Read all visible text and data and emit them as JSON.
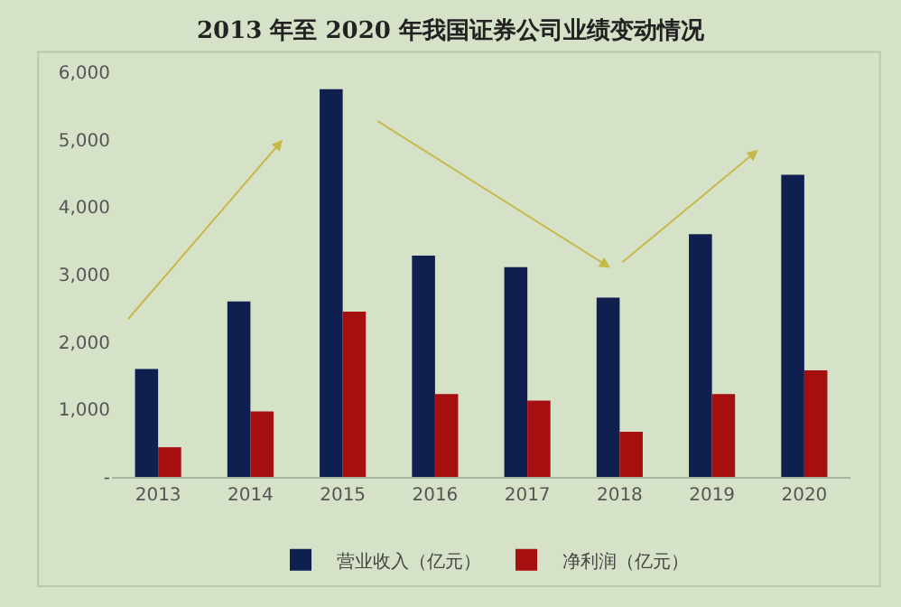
{
  "chart_data": {
    "type": "bar",
    "title": "2013 年至 2020 年我国证券公司业绩变动情况",
    "categories": [
      "2013",
      "2014",
      "2015",
      "2016",
      "2017",
      "2018",
      "2019",
      "2020"
    ],
    "series": [
      {
        "name": "营业收入（亿元）",
        "color": "#0f1f4f",
        "values": [
          1600,
          2600,
          5750,
          3280,
          3110,
          2660,
          3600,
          4480
        ]
      },
      {
        "name": "净利润（亿元）",
        "color": "#a50f0f",
        "values": [
          440,
          970,
          2450,
          1230,
          1130,
          670,
          1230,
          1580
        ]
      }
    ],
    "ylim": [
      0,
      6000
    ],
    "yticks": [
      {
        "value": 0,
        "label": "-"
      },
      {
        "value": 1000,
        "label": "1,000"
      },
      {
        "value": 2000,
        "label": "2,000"
      },
      {
        "value": 3000,
        "label": "3,000"
      },
      {
        "value": 4000,
        "label": "4,000"
      },
      {
        "value": 5000,
        "label": "5,000"
      },
      {
        "value": 6000,
        "label": "6,000"
      }
    ],
    "grid": false,
    "legend": "bottom"
  }
}
